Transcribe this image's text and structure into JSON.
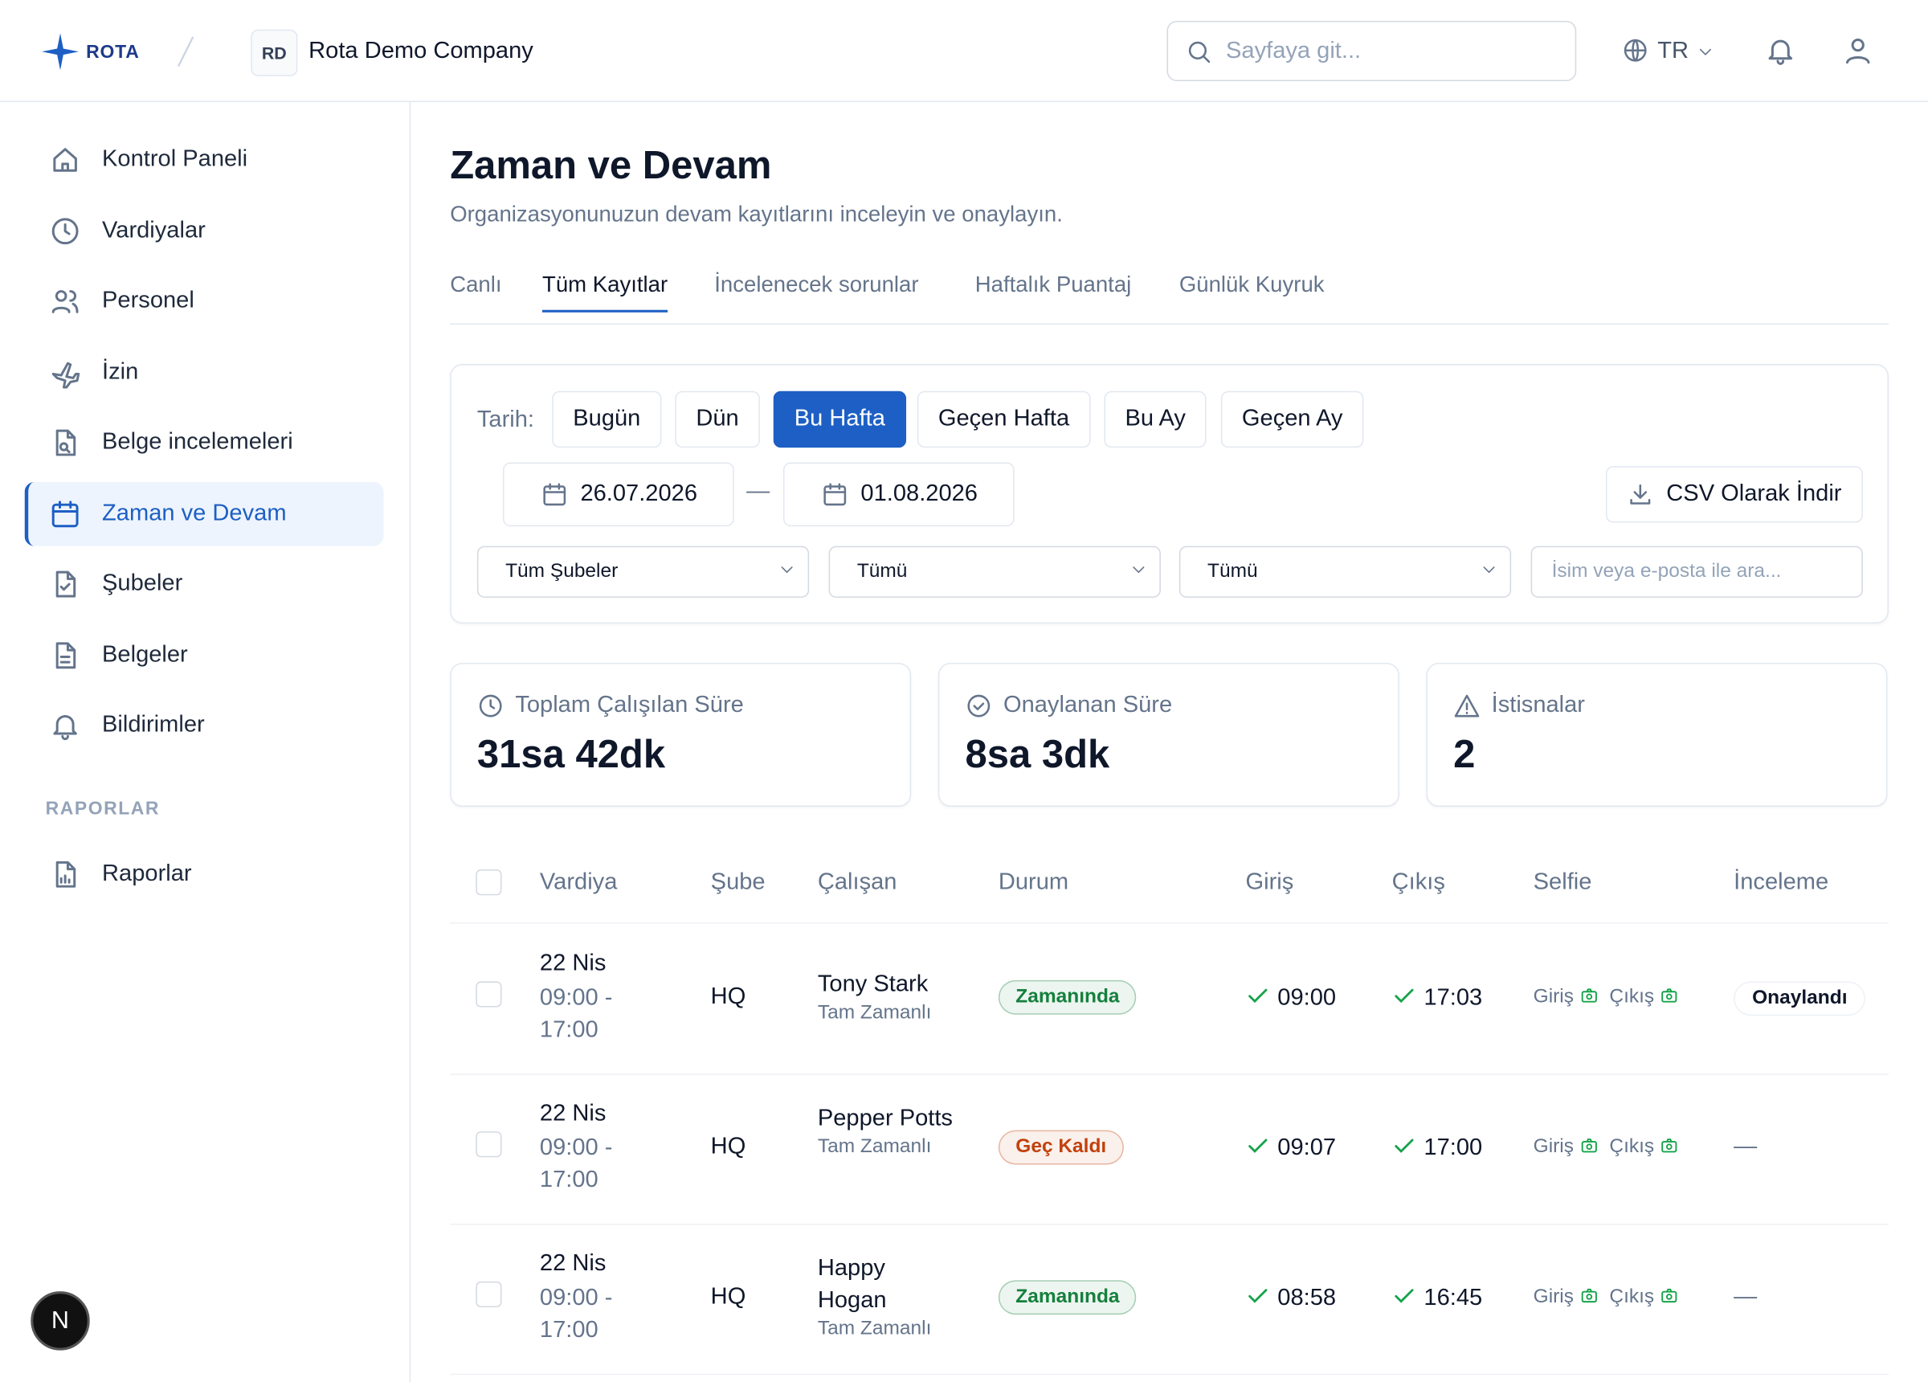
{
  "header": {
    "logo": "ROTA",
    "company_initials": "RD",
    "company": "Rota Demo Company",
    "search_placeholder": "Sayfaya git...",
    "language": "TR"
  },
  "sidebar": {
    "items": [
      "Kontrol Paneli",
      "Vardiyalar",
      "Personel",
      "İzin",
      "Belge incelemeleri",
      "Zaman ve Devam",
      "Şubeler",
      "Belgeler",
      "Bildirimler"
    ],
    "section": "RAPORLAR",
    "report_items": [
      "Raporlar"
    ]
  },
  "page": {
    "title": "Zaman ve Devam",
    "subtitle": "Organizasyonunuzun devam kayıtlarını inceleyin ve onaylayın."
  },
  "tabs": [
    {
      "label": "Canlı"
    },
    {
      "label": "Tüm Kayıtlar",
      "active": true
    },
    {
      "label": "İncelenecek sorunlar"
    },
    {
      "label": "Haftalık Puantaj"
    },
    {
      "label": "Günlük Kuyruk"
    }
  ],
  "filters": {
    "date_label": "Tarih:",
    "presets": [
      {
        "label": "Bugün"
      },
      {
        "label": "Dün"
      },
      {
        "label": "Bu Hafta",
        "active": true
      },
      {
        "label": "Geçen Hafta"
      },
      {
        "label": "Bu Ay"
      },
      {
        "label": "Geçen Ay"
      }
    ],
    "start_date": "26.07.2026",
    "separator": "—",
    "end_date": "01.08.2026",
    "export": "CSV Olarak İndir",
    "selects": [
      "Tüm Şubeler",
      "Tümü",
      "Tümü"
    ],
    "search_placeholder": "İsim veya e-posta ile ara..."
  },
  "stats": [
    {
      "label": "Toplam Çalışılan Süre",
      "value": "31sa 42dk"
    },
    {
      "label": "Onaylanan Süre",
      "value": "8sa 3dk"
    },
    {
      "label": "İstisnalar",
      "value": "2"
    }
  ],
  "table": {
    "columns": [
      "Vardiya",
      "Şube",
      "Çalışan",
      "Durum",
      "Giriş",
      "Çıkış",
      "Selfie",
      "İnceleme"
    ],
    "rows": [
      {
        "date": "22 Nis",
        "shift": "09:00 - 17:00",
        "branch": "HQ",
        "employee": "Tony Stark",
        "employment": "Tam Zamanlı",
        "status": "Zamanında",
        "status_color": "#15803d",
        "clock_in": "09:00",
        "clock_out": "17:03",
        "selfie_in": "Giriş",
        "selfie_out": "Çıkış",
        "review": "Onaylandı",
        "review_badge": true
      },
      {
        "date": "22 Nis",
        "shift": "09:00 - 17:00",
        "branch": "HQ",
        "employee": "Pepper Potts",
        "employment": "Tam Zamanlı",
        "status": "Geç Kaldı",
        "status_color": "#c2410c",
        "clock_in": "09:07",
        "clock_out": "17:00",
        "selfie_in": "Giriş",
        "selfie_out": "Çıkış",
        "review": "—",
        "review_badge": false
      },
      {
        "date": "22 Nis",
        "shift": "09:00 - 17:00",
        "branch": "HQ",
        "employee": "Happy Hogan",
        "employment": "Tam Zamanlı",
        "status": "Zamanında",
        "status_color": "#15803d",
        "clock_in": "08:58",
        "clock_out": "16:45",
        "selfie_in": "Giriş",
        "selfie_out": "Çıkış",
        "review": "—",
        "review_badge": false
      }
    ]
  },
  "dev_badge": "N"
}
